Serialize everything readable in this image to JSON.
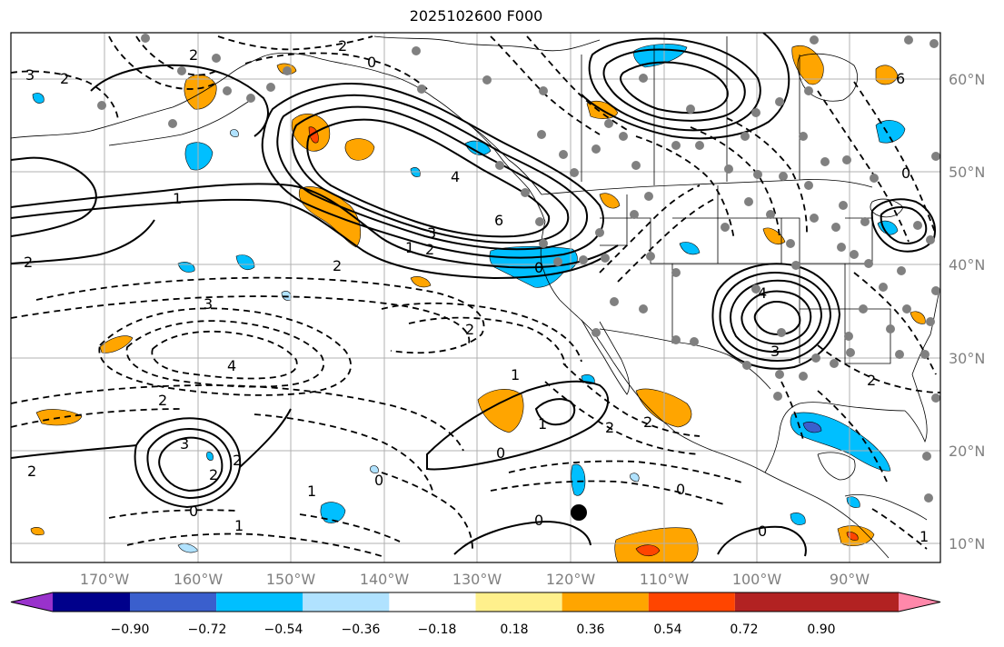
{
  "title": "2025102600 F000",
  "lon_ticks": [
    "170°W",
    "160°W",
    "150°W",
    "140°W",
    "130°W",
    "120°W",
    "110°W",
    "100°W",
    "90°W"
  ],
  "lat_ticks": [
    "60°N",
    "50°N",
    "40°N",
    "30°N",
    "20°N",
    "10°N"
  ],
  "colorbar": {
    "colors": [
      "#9932cc",
      "#00008b",
      "#3a5fcd",
      "#00bfff",
      "#b0e2ff",
      "#ffffff",
      "#fff08c",
      "#ffa500",
      "#ff4500",
      "#b22222",
      "#ff88aa"
    ],
    "tick_labels": [
      "−0.90",
      "−0.72",
      "−0.54",
      "−0.36",
      "−0.18",
      "0.18",
      "0.36",
      "0.54",
      "0.72",
      "0.90"
    ]
  },
  "contour_labels": [
    "3",
    "2",
    "2",
    "0",
    "1",
    "2",
    "4",
    "6",
    "3",
    "2",
    "1",
    "0",
    "2",
    "3",
    "2",
    "4",
    "2",
    "6",
    "0",
    "4",
    "3",
    "1",
    "0",
    "2",
    "2",
    "1",
    "2",
    "3",
    "2",
    "2",
    "0",
    "1",
    "0",
    "1",
    "2",
    "0",
    "0",
    "0",
    "2",
    "1"
  ],
  "colors": {
    "frame": "#000000",
    "grid": "#b0b0b0",
    "station": "#808080",
    "orange": "#ffa500",
    "red": "#ff4500",
    "blue": "#00bfff",
    "navy": "#3a5fcd",
    "lightblue": "#b0e2ff"
  }
}
